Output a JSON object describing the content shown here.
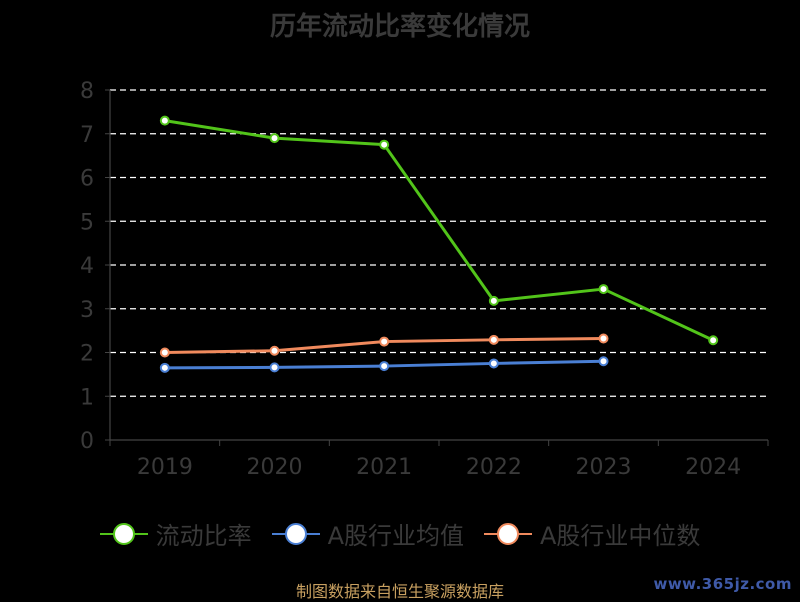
{
  "chart_data": {
    "type": "line",
    "title": "历年流动比率变化情况",
    "categories": [
      "2019",
      "2020",
      "2021",
      "2022",
      "2023",
      "2024"
    ],
    "ylim": [
      0,
      8
    ],
    "yticks": [
      "0",
      "1",
      "2",
      "3",
      "4",
      "5",
      "6",
      "7",
      "8"
    ],
    "grid": true,
    "legend_position": "bottom",
    "series": [
      {
        "name": "流动比率",
        "color": "#52c41a",
        "values": [
          7.3,
          6.9,
          6.75,
          3.18,
          3.45,
          2.28
        ]
      },
      {
        "name": "A股行业均值",
        "color": "#4a7fd4",
        "values": [
          1.65,
          1.66,
          1.69,
          1.75,
          1.8,
          null
        ]
      },
      {
        "name": "A股行业中位数",
        "color": "#f08a5d",
        "values": [
          2.0,
          2.04,
          2.25,
          2.29,
          2.32,
          null
        ]
      }
    ]
  },
  "footer": {
    "source": "制图数据来自恒生聚源数据库",
    "watermark": "www.365jz.com"
  }
}
